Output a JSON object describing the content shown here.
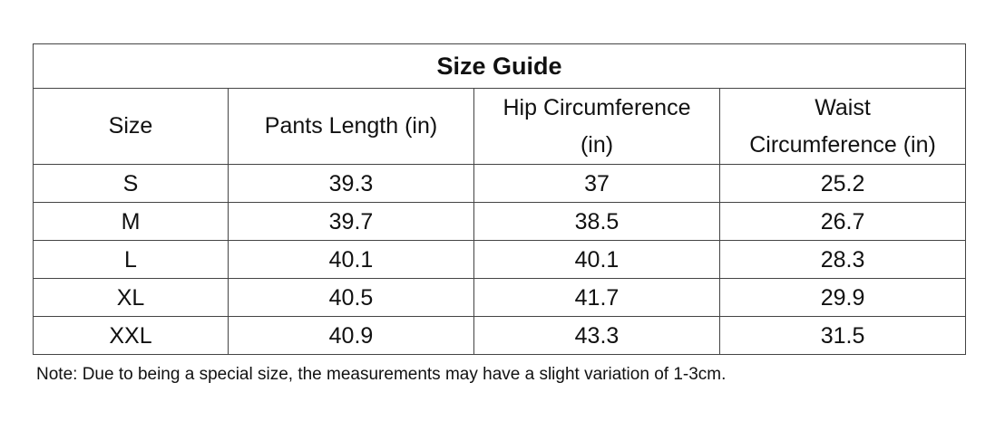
{
  "table": {
    "title": "Size Guide",
    "header": [
      "Size",
      "Pants Length (in)",
      "Hip Circumference (in)",
      "Waist Circumference (in)"
    ],
    "rows": [
      [
        "S",
        39.3,
        37,
        25.2
      ],
      [
        "M",
        39.7,
        38.5,
        26.7
      ],
      [
        "L",
        40.1,
        40.1,
        28.3
      ],
      [
        "XL",
        40.5,
        41.7,
        29.9
      ],
      [
        "XXL",
        40.9,
        43.3,
        31.5
      ]
    ]
  },
  "note": "Note: Due to being a special size, the measurements may have a slight variation of 1-3cm."
}
